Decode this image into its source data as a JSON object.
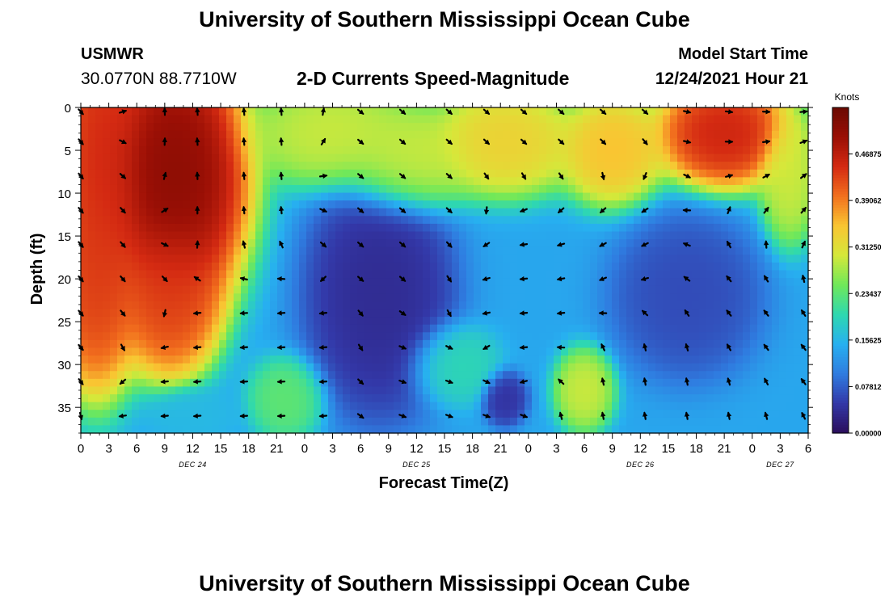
{
  "page": {
    "title": "University of Southern Mississippi Ocean Cube",
    "title_repeat": "University of Southern Mississippi Ocean Cube"
  },
  "header": {
    "station": "USMWR",
    "coordinates": "30.0770N  88.7710W",
    "subtitle": "2-D Currents Speed-Magnitude",
    "model_start_label": "Model Start Time",
    "model_start_value": "12/24/2021 Hour 21"
  },
  "chart_data": {
    "type": "heatmap",
    "title": "2-D Currents Speed-Magnitude",
    "xlabel": "Forecast Time(Z)",
    "ylabel": "Depth (ft)",
    "x_range_hours": [
      0,
      78
    ],
    "y_range_ft": [
      0,
      38
    ],
    "x_tick_labels": [
      "0",
      "3",
      "6",
      "9",
      "12",
      "15",
      "18",
      "21",
      "0",
      "3",
      "6",
      "9",
      "12",
      "15",
      "18",
      "21",
      "0",
      "3",
      "6",
      "9",
      "12",
      "15",
      "18",
      "21",
      "0",
      "3",
      "6"
    ],
    "y_ticks": [
      0,
      5,
      10,
      15,
      20,
      25,
      30,
      35
    ],
    "y_tick_labels": [
      "0",
      "5",
      "10",
      "15",
      "20",
      "25",
      "30",
      "35"
    ],
    "date_labels": [
      {
        "label": "DEC 24",
        "hour": 12
      },
      {
        "label": "DEC 25",
        "hour": 36
      },
      {
        "label": "DEC 26",
        "hour": 60
      },
      {
        "label": "DEC 27",
        "hour": 75
      }
    ],
    "colorbar": {
      "title": "Knots",
      "range": [
        0,
        0.546875
      ],
      "tick_values": [
        0.0,
        0.078125,
        0.15625,
        0.234375,
        0.3125,
        0.390625,
        0.46875
      ],
      "tick_labels": [
        "0.00000",
        "0.07812",
        "0.15625",
        "0.23437",
        "0.31250",
        "0.39062",
        "0.46875"
      ],
      "colors": [
        "#2b0e5c",
        "#3338a8",
        "#2f7ce0",
        "#27b0f0",
        "#2ed8b0",
        "#6fe85a",
        "#d5e83a",
        "#f9c532",
        "#f2701e",
        "#d42a12",
        "#9a0f05",
        "#6a0a02"
      ]
    },
    "speed_centers": [
      {
        "hour": 2,
        "depth": 6,
        "value": 0.46,
        "sx": 3.0,
        "sy": 14
      },
      {
        "hour": 1.5,
        "depth": 20,
        "value": 0.44,
        "sx": 3.0,
        "sy": 8
      },
      {
        "hour": 10,
        "depth": 8,
        "value": 0.53,
        "sx": 5.0,
        "sy": 10
      },
      {
        "hour": 9.5,
        "depth": 22,
        "value": 0.44,
        "sx": 3.5,
        "sy": 6
      },
      {
        "hour": 27,
        "depth": 3,
        "value": 0.3,
        "sx": 5.5,
        "sy": 4
      },
      {
        "hour": 35,
        "depth": 6,
        "value": 0.3,
        "sx": 4.5,
        "sy": 4
      },
      {
        "hour": 32,
        "depth": 22,
        "value": 0.03,
        "sx": 5.0,
        "sy": 9
      },
      {
        "hour": 45.5,
        "depth": 4,
        "value": 0.34,
        "sx": 5.0,
        "sy": 4
      },
      {
        "hour": 45.5,
        "depth": 34,
        "value": 0.04,
        "sx": 1.5,
        "sy": 2
      },
      {
        "hour": 54,
        "depth": 33,
        "value": 0.3,
        "sx": 2.0,
        "sy": 3
      },
      {
        "hour": 57,
        "depth": 5,
        "value": 0.36,
        "sx": 3.5,
        "sy": 4
      },
      {
        "hour": 69,
        "depth": 3,
        "value": 0.47,
        "sx": 4.5,
        "sy": 4
      },
      {
        "hour": 76,
        "depth": 8,
        "value": 0.3,
        "sx": 2.0,
        "sy": 5
      },
      {
        "hour": 65,
        "depth": 22,
        "value": 0.06,
        "sx": 5.0,
        "sy": 6
      },
      {
        "hour": 22,
        "depth": 34,
        "value": 0.24,
        "sx": 2.5,
        "sy": 3
      },
      {
        "hour": 12,
        "depth": 36,
        "value": 0.16,
        "sx": 3.0,
        "sy": 2
      },
      {
        "hour": 40,
        "depth": 30,
        "value": 0.2,
        "sx": 3.0,
        "sy": 3
      }
    ],
    "arrow_times": [
      0,
      4.5,
      9,
      12.5,
      17.5,
      21.5,
      26,
      30,
      34.5,
      39.5,
      43.5,
      47.5,
      51.5,
      56,
      60.5,
      65,
      69.5,
      73.5,
      77.5
    ],
    "arrow_depths": [
      0.5,
      4,
      8,
      12,
      16,
      20,
      24,
      28,
      32,
      36
    ],
    "arrow_direction_regions": [
      {
        "hour": 4,
        "depth": 15,
        "angle_deg": 50
      },
      {
        "hour": 14,
        "depth": 10,
        "angle_deg": -95
      },
      {
        "hour": 18,
        "depth": 28,
        "angle_deg": 175
      },
      {
        "hour": 22,
        "depth": 34,
        "angle_deg": 178
      },
      {
        "hour": 36,
        "depth": 15,
        "angle_deg": 40
      },
      {
        "hour": 36,
        "depth": 35,
        "angle_deg": 20
      },
      {
        "hour": 48,
        "depth": 20,
        "angle_deg": 175
      },
      {
        "hour": 54,
        "depth": 3,
        "angle_deg": 40
      },
      {
        "hour": 58,
        "depth": 15,
        "angle_deg": 150
      },
      {
        "hour": 62,
        "depth": 32,
        "angle_deg": -100
      },
      {
        "hour": 70,
        "depth": 20,
        "angle_deg": -130
      },
      {
        "hour": 72,
        "depth": 3,
        "angle_deg": 10
      },
      {
        "hour": 76,
        "depth": 10,
        "angle_deg": -50
      }
    ]
  }
}
